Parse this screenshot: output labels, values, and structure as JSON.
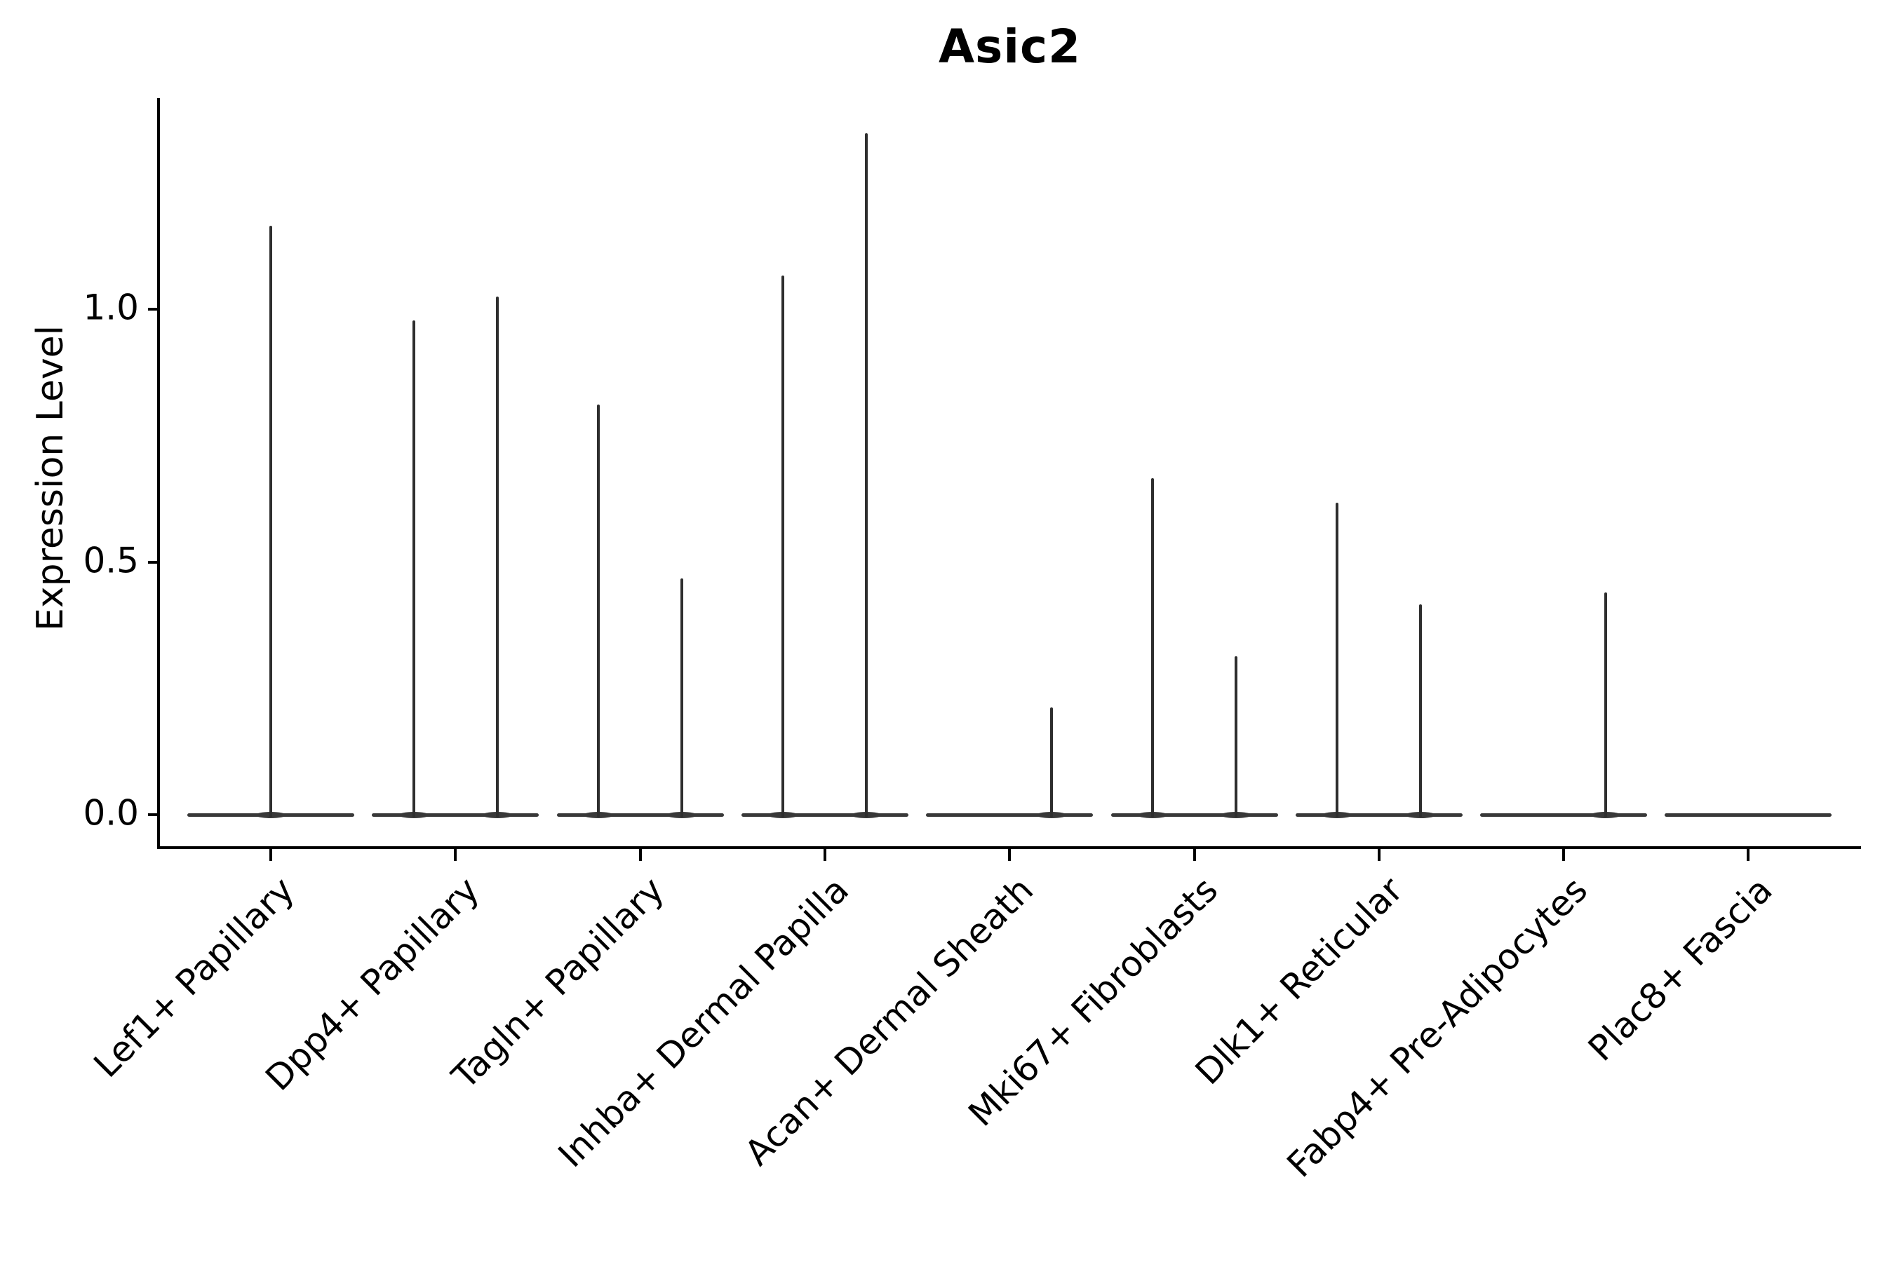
{
  "title": "Asic2",
  "colors": {
    "background": "#ffffff",
    "axis": "#000000",
    "violin_stroke": "#2e2e2e",
    "text": "#000000"
  },
  "y_axis": {
    "label": "Expression Level",
    "tick_labels": [
      "0.0",
      "0.5",
      "1.0"
    ],
    "tick_values": [
      0.0,
      0.5,
      1.0
    ]
  },
  "chart_data": {
    "type": "violin",
    "title": "Asic2",
    "xlabel": "",
    "ylabel": "Expression Level",
    "ylim": [
      -0.07,
      1.42
    ],
    "yticks": [
      0.0,
      0.5,
      1.0
    ],
    "grid": false,
    "legend": false,
    "description": "Violin plot of Asic2 expression per fibroblast cell type; expression is near zero for almost all cells so each violin collapses to a flat base strip at 0 with one thin spike per sub-violin reaching the maximum expressing cell. Categories with two sub-violins have spikes offset left/right of the category center.",
    "categories": [
      "Lef1+ Papillary",
      "Dpp4+ Papillary",
      "Tagln+ Papillary",
      "Inhba+ Dermal Papilla",
      "Acan+ Dermal Sheath",
      "Mki67+ Fibroblasts",
      "Dlk1+ Reticular",
      "Fabp4+ Pre-Adipocytes",
      "Plac8+ Fascia"
    ],
    "series": [
      {
        "category": "Lef1+ Papillary",
        "spikes": [
          {
            "offset": "center",
            "peak": 1.165
          }
        ]
      },
      {
        "category": "Dpp4+ Papillary",
        "spikes": [
          {
            "offset": "left",
            "peak": 0.978
          },
          {
            "offset": "right",
            "peak": 1.025
          }
        ]
      },
      {
        "category": "Tagln+ Papillary",
        "spikes": [
          {
            "offset": "left",
            "peak": 0.811
          },
          {
            "offset": "right",
            "peak": 0.467
          }
        ]
      },
      {
        "category": "Inhba+ Dermal Papilla",
        "spikes": [
          {
            "offset": "left",
            "peak": 1.067
          },
          {
            "offset": "right",
            "peak": 1.348
          }
        ]
      },
      {
        "category": "Acan+ Dermal Sheath",
        "spikes": [
          {
            "offset": "right",
            "peak": 0.212
          }
        ]
      },
      {
        "category": "Mki67+ Fibroblasts",
        "spikes": [
          {
            "offset": "left",
            "peak": 0.666
          },
          {
            "offset": "right",
            "peak": 0.313
          }
        ]
      },
      {
        "category": "Dlk1+ Reticular",
        "spikes": [
          {
            "offset": "left",
            "peak": 0.617
          },
          {
            "offset": "right",
            "peak": 0.416
          }
        ]
      },
      {
        "category": "Fabp4+ Pre-Adipocytes",
        "spikes": [
          {
            "offset": "right",
            "peak": 0.44
          }
        ]
      },
      {
        "category": "Plac8+ Fascia",
        "spikes": []
      }
    ]
  }
}
